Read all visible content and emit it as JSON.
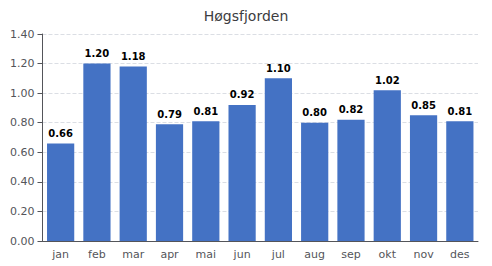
{
  "chart_data": {
    "type": "bar",
    "title": "Høgsfjorden",
    "categories": [
      "jan",
      "feb",
      "mar",
      "apr",
      "mai",
      "jun",
      "jul",
      "aug",
      "sep",
      "okt",
      "nov",
      "des"
    ],
    "values": [
      0.66,
      1.2,
      1.18,
      0.79,
      0.81,
      0.92,
      1.1,
      0.8,
      0.82,
      1.02,
      0.85,
      0.81
    ],
    "value_labels": [
      "0.66",
      "1.20",
      "1.18",
      "0.79",
      "0.81",
      "0.92",
      "1.10",
      "0.80",
      "0.82",
      "1.02",
      "0.85",
      "0.81"
    ],
    "data_labels": true,
    "color": "#4472C4",
    "ylim": [
      0.0,
      1.4
    ],
    "yticks": [
      {
        "value": 0.0,
        "label": "0.00"
      },
      {
        "value": 0.2,
        "label": "0.20"
      },
      {
        "value": 0.4,
        "label": "0.40"
      },
      {
        "value": 0.6,
        "label": "0.60"
      },
      {
        "value": 0.8,
        "label": "0.80"
      },
      {
        "value": 1.0,
        "label": "1.00"
      },
      {
        "value": 1.2,
        "label": "1.20"
      },
      {
        "value": 1.4,
        "label": "1.40"
      }
    ],
    "grid": true
  }
}
